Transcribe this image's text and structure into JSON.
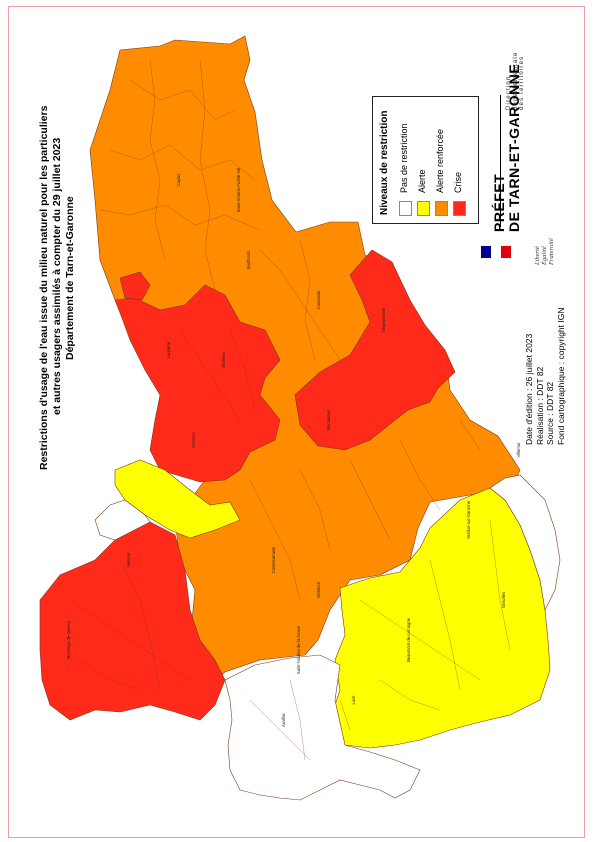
{
  "title": {
    "line1": "Restrictions d'usage de l'eau issue du milieu naturel pour les particuliers",
    "line2": "et autres usagers assimilés à compter du 29 juillet 2023",
    "line3": "Département de Tarn-et-Garonne"
  },
  "meta": {
    "edition": "Date d'édition : 26 juillet 2023",
    "realisation": "Réalisation : DDT 82",
    "source": "Source : DDT 82",
    "fond": "Fond cartographique : copyright IGN"
  },
  "legend": {
    "title": "Niveaux de restriction",
    "items": [
      {
        "label": "Pas de restriction",
        "color": "#ffffff"
      },
      {
        "label": "Alerte",
        "color": "#ffff00"
      },
      {
        "label": "Alerte renforcée",
        "color": "#ff8c00"
      },
      {
        "label": "Crise",
        "color": "#ff2a1a"
      }
    ]
  },
  "prefet": {
    "line1": "PRÉFET",
    "line2": "DE TARN-ET-GARONNE",
    "motto": [
      "Liberté",
      "Égalité",
      "Fraternité"
    ],
    "direction": [
      "Direction",
      "départementale",
      "des territoires"
    ]
  },
  "colors": {
    "none": "#ffffff",
    "alerte": "#ffff00",
    "alerte_renforcee": "#ff8c00",
    "crise": "#ff2a1a",
    "border": "#7a3a1a",
    "frame": "#e7a1a1"
  },
  "communes": [
    {
      "name": "Montauban",
      "zone": "crise"
    },
    {
      "name": "Caussade",
      "zone": "alerte_renforcee"
    },
    {
      "name": "Moissac",
      "zone": "crise"
    },
    {
      "name": "Castelsarrasin",
      "zone": "alerte_renforcee"
    },
    {
      "name": "Valence",
      "zone": "crise"
    },
    {
      "name": "Lauzerte",
      "zone": "crise"
    },
    {
      "name": "Montech",
      "zone": "alerte_renforcee"
    },
    {
      "name": "Beaumont-de-Lomagne",
      "zone": "alerte"
    },
    {
      "name": "Lavit",
      "zone": "alerte"
    },
    {
      "name": "Grisolles",
      "zone": "alerte"
    },
    {
      "name": "Verdun-sur-Garonne",
      "zone": "alerte"
    },
    {
      "name": "Nègrepelisse",
      "zone": "crise"
    },
    {
      "name": "Saint-Antonin-Noble-Val",
      "zone": "alerte_renforcee"
    },
    {
      "name": "Caylus",
      "zone": "alerte_renforcee"
    },
    {
      "name": "Septfonds",
      "zone": "alerte_renforcee"
    },
    {
      "name": "Molières",
      "zone": "crise"
    },
    {
      "name": "Auvillar",
      "zone": "none"
    },
    {
      "name": "Saint-Nicolas-de-la-Grave",
      "zone": "alerte_renforcee"
    },
    {
      "name": "Montaigu-de-Quercy",
      "zone": "crise"
    },
    {
      "name": "Villemur",
      "zone": "alerte_renforcee"
    }
  ]
}
